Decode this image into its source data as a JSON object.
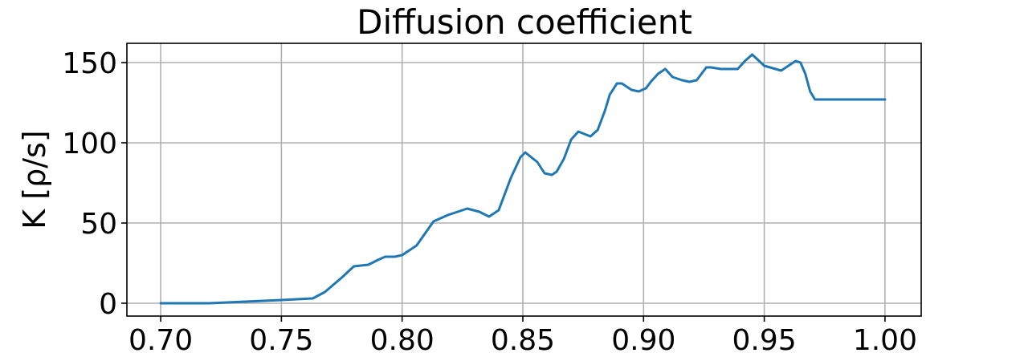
{
  "chart_data": {
    "type": "line",
    "title": "Diffusion coefficient",
    "xlabel": "",
    "ylabel": "K [ρ/s]",
    "xlim": [
      0.686,
      1.015
    ],
    "ylim": [
      -8,
      162
    ],
    "xticks": [
      0.7,
      0.75,
      0.8,
      0.85,
      0.9,
      0.95,
      1.0
    ],
    "xtick_labels": [
      "0.70",
      "0.75",
      "0.80",
      "0.85",
      "0.90",
      "0.95",
      "1.00"
    ],
    "yticks": [
      0,
      50,
      100,
      150
    ],
    "ytick_labels": [
      "0",
      "50",
      "100",
      "150"
    ],
    "grid": true,
    "series": [
      {
        "color": "#1f77b4",
        "x": [
          0.7,
          0.72,
          0.75,
          0.763,
          0.768,
          0.775,
          0.78,
          0.786,
          0.79,
          0.793,
          0.797,
          0.8,
          0.806,
          0.813,
          0.819,
          0.825,
          0.827,
          0.832,
          0.836,
          0.84,
          0.845,
          0.849,
          0.851,
          0.856,
          0.859,
          0.862,
          0.864,
          0.867,
          0.87,
          0.873,
          0.878,
          0.881,
          0.884,
          0.886,
          0.889,
          0.891,
          0.895,
          0.898,
          0.901,
          0.903,
          0.906,
          0.909,
          0.912,
          0.916,
          0.919,
          0.922,
          0.926,
          0.928,
          0.932,
          0.936,
          0.939,
          0.942,
          0.945,
          0.95,
          0.957,
          0.96,
          0.963,
          0.965,
          0.967,
          0.969,
          0.971,
          1.0
        ],
        "y": [
          0,
          0,
          2,
          3,
          7,
          16,
          23,
          24,
          27,
          29,
          29,
          30,
          36,
          51,
          55,
          58,
          59,
          57,
          54,
          58,
          78,
          91,
          94,
          88,
          81,
          80,
          82,
          90,
          102,
          107,
          104,
          108,
          120,
          130,
          137,
          137,
          133,
          132,
          134,
          138,
          143,
          146,
          141,
          139,
          138,
          139,
          147,
          147,
          146,
          146,
          146,
          151,
          155,
          148,
          145,
          148,
          151,
          150,
          143,
          132,
          127,
          127
        ]
      }
    ]
  }
}
